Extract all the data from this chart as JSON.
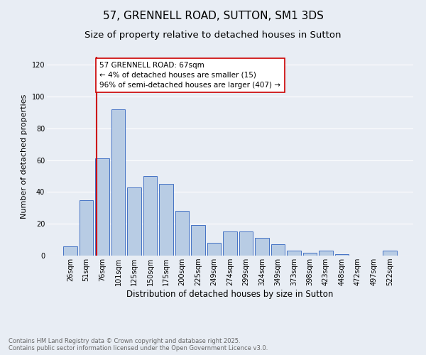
{
  "title": "57, GRENNELL ROAD, SUTTON, SM1 3DS",
  "subtitle": "Size of property relative to detached houses in Sutton",
  "xlabel": "Distribution of detached houses by size in Sutton",
  "ylabel": "Number of detached properties",
  "categories": [
    "26sqm",
    "51sqm",
    "76sqm",
    "101sqm",
    "125sqm",
    "150sqm",
    "175sqm",
    "200sqm",
    "225sqm",
    "249sqm",
    "274sqm",
    "299sqm",
    "324sqm",
    "349sqm",
    "373sqm",
    "398sqm",
    "423sqm",
    "448sqm",
    "472sqm",
    "497sqm",
    "522sqm"
  ],
  "values": [
    6,
    35,
    61,
    92,
    43,
    50,
    45,
    28,
    19,
    8,
    15,
    15,
    11,
    7,
    3,
    2,
    3,
    1,
    0,
    0,
    3
  ],
  "bar_color": "#b8cce4",
  "bar_edge_color": "#4472c4",
  "background_color": "#e8edf4",
  "grid_color": "#ffffff",
  "annotation_line_color": "#cc0000",
  "annotation_text": "57 GRENNELL ROAD: 67sqm\n← 4% of detached houses are smaller (15)\n96% of semi-detached houses are larger (407) →",
  "annotation_box_color": "#ffffff",
  "annotation_box_edge_color": "#cc0000",
  "ylim": [
    0,
    125
  ],
  "yticks": [
    0,
    20,
    40,
    60,
    80,
    100,
    120
  ],
  "footnote": "Contains HM Land Registry data © Crown copyright and database right 2025.\nContains public sector information licensed under the Open Government Licence v3.0.",
  "title_fontsize": 11,
  "subtitle_fontsize": 9.5,
  "xlabel_fontsize": 8.5,
  "ylabel_fontsize": 8,
  "tick_fontsize": 7,
  "annotation_fontsize": 7.5,
  "footnote_fontsize": 6
}
